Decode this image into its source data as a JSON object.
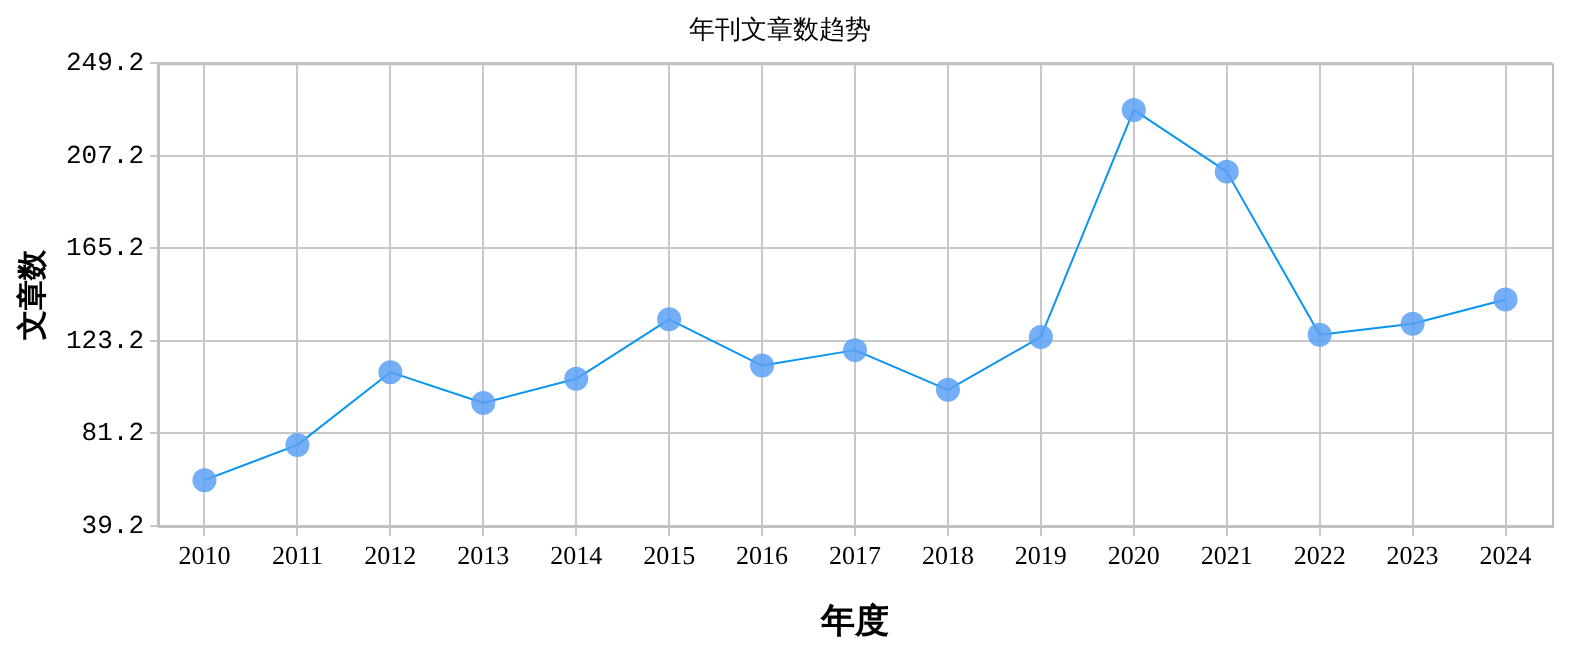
{
  "chart_data": {
    "type": "line",
    "title": "年刊文章数趋势",
    "xlabel": "年度",
    "ylabel": "文章数",
    "categories": [
      "2010",
      "2011",
      "2012",
      "2013",
      "2014",
      "2015",
      "2016",
      "2017",
      "2018",
      "2019",
      "2020",
      "2021",
      "2022",
      "2023",
      "2024"
    ],
    "series": [
      {
        "color": "#0a96f0",
        "values": [
          60,
          76,
          109,
          95,
          106,
          133,
          112,
          119,
          101,
          125,
          228,
          200,
          126,
          131,
          142
        ]
      }
    ],
    "ylim": [
      39.2,
      249.2
    ],
    "yticks": [
      {
        "value": 39.2,
        "label": "39.2"
      },
      {
        "value": 81.2,
        "label": "81.2"
      },
      {
        "value": 123.2,
        "label": "123.2"
      },
      {
        "value": 165.2,
        "label": "165.2"
      },
      {
        "value": 207.2,
        "label": "207.2"
      },
      {
        "value": 249.2,
        "label": "249.2"
      }
    ],
    "grid": true,
    "legend": false,
    "marker": "circle",
    "line_style": "solid"
  }
}
